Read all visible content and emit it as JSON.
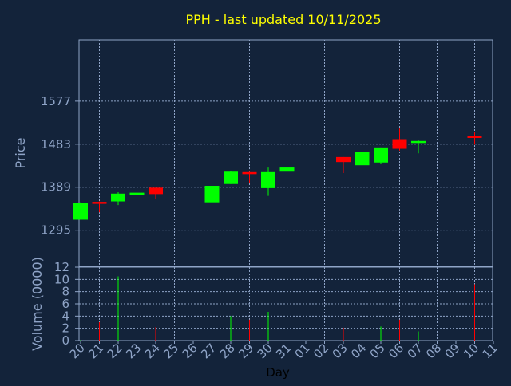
{
  "chart_data": [
    {
      "type": "candlestick",
      "title": "PPH - last updated 10/11/2025",
      "ylabel": "Price",
      "xlabel": "",
      "ylim": [
        1216,
        1711
      ],
      "y_ticks": [
        1295,
        1389,
        1483,
        1577
      ],
      "grid": true,
      "colors": {
        "up": "#00ff00",
        "down": "#ff0000",
        "background": "#13233a",
        "frame": "#8fa4c7",
        "grid": "#8fa4c7",
        "title": "#ffff00",
        "label": "#8fa4c7"
      },
      "categories": [
        "20",
        "21",
        "22",
        "23",
        "24",
        "25",
        "26",
        "27",
        "28",
        "29",
        "30",
        "31",
        "01",
        "02",
        "03",
        "04",
        "05",
        "06",
        "07",
        "08",
        "09",
        "10",
        "11"
      ],
      "candles": [
        {
          "day": "20",
          "open": 1318,
          "high": 1356,
          "low": 1318,
          "close": 1355
        },
        {
          "day": "21",
          "open": 1357,
          "high": 1358,
          "low": 1334,
          "close": 1354
        },
        {
          "day": "22",
          "open": 1358,
          "high": 1378,
          "low": 1350,
          "close": 1375
        },
        {
          "day": "23",
          "open": 1375,
          "high": 1381,
          "low": 1355,
          "close": 1377
        },
        {
          "day": "24",
          "open": 1388,
          "high": 1388,
          "low": 1364,
          "close": 1374
        },
        {
          "day": "27",
          "open": 1356,
          "high": 1394,
          "low": 1356,
          "close": 1392
        },
        {
          "day": "28",
          "open": 1396,
          "high": 1424,
          "low": 1396,
          "close": 1423
        },
        {
          "day": "29",
          "open": 1422,
          "high": 1423,
          "low": 1399,
          "close": 1419
        },
        {
          "day": "30",
          "open": 1387,
          "high": 1432,
          "low": 1370,
          "close": 1422
        },
        {
          "day": "31",
          "open": 1423,
          "high": 1451,
          "low": 1415,
          "close": 1432
        },
        {
          "day": "03",
          "open": 1455,
          "high": 1455,
          "low": 1420,
          "close": 1444
        },
        {
          "day": "04",
          "open": 1437,
          "high": 1466,
          "low": 1429,
          "close": 1466
        },
        {
          "day": "05",
          "open": 1443,
          "high": 1476,
          "low": 1439,
          "close": 1476
        },
        {
          "day": "06",
          "open": 1494,
          "high": 1517,
          "low": 1469,
          "close": 1473
        },
        {
          "day": "07",
          "open": 1488,
          "high": 1493,
          "low": 1463,
          "close": 1490
        },
        {
          "day": "10",
          "open": 1501,
          "high": 1510,
          "low": 1482,
          "close": 1498
        }
      ]
    },
    {
      "type": "bar",
      "xlabel": "Day",
      "ylabel": "Volume (0000)",
      "ylim": [
        0,
        12
      ],
      "y_ticks": [
        0,
        2,
        4,
        6,
        8,
        10,
        12
      ],
      "grid": true,
      "categories": [
        "20",
        "21",
        "22",
        "23",
        "24",
        "25",
        "26",
        "27",
        "28",
        "29",
        "30",
        "31",
        "01",
        "02",
        "03",
        "04",
        "05",
        "06",
        "07",
        "08",
        "09",
        "10",
        "11"
      ],
      "bars": [
        {
          "day": "20",
          "value": 0.1,
          "direction": "up"
        },
        {
          "day": "21",
          "value": 3.0,
          "direction": "down"
        },
        {
          "day": "22",
          "value": 10.5,
          "direction": "up"
        },
        {
          "day": "23",
          "value": 1.7,
          "direction": "up"
        },
        {
          "day": "24",
          "value": 2.2,
          "direction": "down"
        },
        {
          "day": "27",
          "value": 2.0,
          "direction": "up"
        },
        {
          "day": "28",
          "value": 4.0,
          "direction": "up"
        },
        {
          "day": "29",
          "value": 3.4,
          "direction": "down"
        },
        {
          "day": "30",
          "value": 4.7,
          "direction": "up"
        },
        {
          "day": "31",
          "value": 2.8,
          "direction": "up"
        },
        {
          "day": "03",
          "value": 2.1,
          "direction": "down"
        },
        {
          "day": "04",
          "value": 3.2,
          "direction": "up"
        },
        {
          "day": "05",
          "value": 2.3,
          "direction": "up"
        },
        {
          "day": "06",
          "value": 3.4,
          "direction": "down"
        },
        {
          "day": "07",
          "value": 1.5,
          "direction": "up"
        },
        {
          "day": "10",
          "value": 9.2,
          "direction": "down"
        }
      ]
    }
  ]
}
